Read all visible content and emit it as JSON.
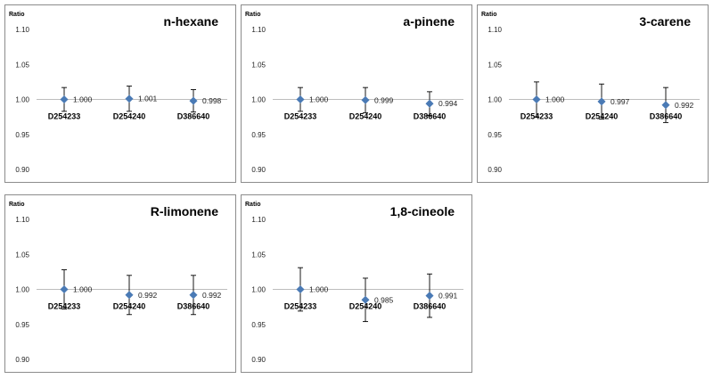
{
  "chart_data": [
    {
      "type": "scatter",
      "title": "n-hexane",
      "ylabel": "Ratio",
      "ylim": [
        0.9,
        1.1
      ],
      "yticks": [
        "0.90",
        "0.95",
        "1.00",
        "1.05",
        "1.10"
      ],
      "categories": [
        "D254233",
        "D254240",
        "D386640"
      ],
      "values": [
        1.0,
        1.001,
        0.998
      ],
      "errors": [
        0.017,
        0.018,
        0.016
      ],
      "labels": [
        "1.000",
        "1.001",
        "0.998"
      ],
      "grid": false,
      "marker_color": "#4a7ab5"
    },
    {
      "type": "scatter",
      "title": "a-pinene",
      "ylabel": "Ratio",
      "ylim": [
        0.9,
        1.1
      ],
      "yticks": [
        "0.90",
        "0.95",
        "1.00",
        "1.05",
        "1.10"
      ],
      "categories": [
        "D254233",
        "D254240",
        "D386640"
      ],
      "values": [
        1.0,
        0.999,
        0.994
      ],
      "errors": [
        0.017,
        0.018,
        0.017
      ],
      "labels": [
        "1.000",
        "0.999",
        "0.994"
      ],
      "grid": false,
      "marker_color": "#4a7ab5"
    },
    {
      "type": "scatter",
      "title": "3-carene",
      "ylabel": "Ratio",
      "ylim": [
        0.9,
        1.1
      ],
      "yticks": [
        "0.90",
        "0.95",
        "1.00",
        "1.05",
        "1.10"
      ],
      "categories": [
        "D254233",
        "D254240",
        "D386640"
      ],
      "values": [
        1.0,
        0.997,
        0.992
      ],
      "errors": [
        0.025,
        0.025,
        0.025
      ],
      "labels": [
        "1.000",
        "0.997",
        "0.992"
      ],
      "grid": false,
      "marker_color": "#4a7ab5"
    },
    {
      "type": "scatter",
      "title": "R-limonene",
      "ylabel": "Ratio",
      "ylim": [
        0.9,
        1.1
      ],
      "yticks": [
        "0.90",
        "0.95",
        "1.00",
        "1.05",
        "1.10"
      ],
      "categories": [
        "D254233",
        "D254240",
        "D386640"
      ],
      "values": [
        1.0,
        0.992,
        0.992
      ],
      "errors": [
        0.028,
        0.028,
        0.028
      ],
      "labels": [
        "1.000",
        "0.992",
        "0.992"
      ],
      "grid": false,
      "marker_color": "#4a7ab5"
    },
    {
      "type": "scatter",
      "title": "1,8-cineole",
      "ylabel": "Ratio",
      "ylim": [
        0.9,
        1.1
      ],
      "yticks": [
        "0.90",
        "0.95",
        "1.00",
        "1.05",
        "1.10"
      ],
      "categories": [
        "D254233",
        "D254240",
        "D386640"
      ],
      "values": [
        1.0,
        0.985,
        0.991
      ],
      "errors": [
        0.031,
        0.031,
        0.031
      ],
      "labels": [
        "1.000",
        "0.985",
        "0.991"
      ],
      "grid": false,
      "marker_color": "#4a7ab5"
    }
  ]
}
